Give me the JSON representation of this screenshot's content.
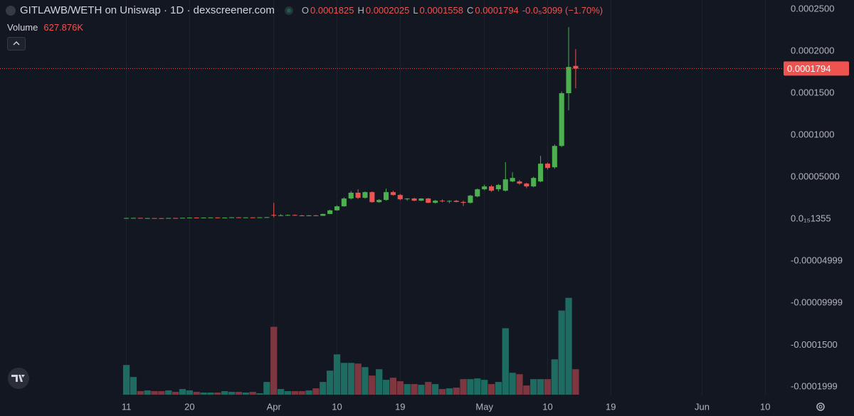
{
  "chart_data": {
    "type": "candlestick",
    "title": "GITLAWB/WETH on Uniswap · 1D · dexscreener.com",
    "ohlc_labels": [
      "O",
      "H",
      "L",
      "C"
    ],
    "change_label": "-0.0₅3099 (−1.70%)",
    "volume_title": "Volume",
    "volume_last_label": "627.876K",
    "x": [
      "03-11",
      "03-12",
      "03-13",
      "03-14",
      "03-15",
      "03-16",
      "03-17",
      "03-18",
      "03-19",
      "03-20",
      "03-21",
      "03-22",
      "03-23",
      "03-24",
      "03-25",
      "03-26",
      "03-27",
      "03-28",
      "03-29",
      "03-30",
      "03-31",
      "04-01",
      "04-02",
      "04-03",
      "04-04",
      "04-05",
      "04-06",
      "04-07",
      "04-08",
      "04-09",
      "04-10",
      "04-11",
      "04-12",
      "04-13",
      "04-14",
      "04-15",
      "04-16",
      "04-17",
      "04-18",
      "04-19",
      "04-20",
      "04-21",
      "04-22",
      "04-23",
      "04-24",
      "04-25",
      "04-26",
      "04-27",
      "04-28",
      "04-29",
      "04-30",
      "05-01",
      "05-02",
      "05-03",
      "05-04",
      "05-05",
      "05-06",
      "05-07",
      "05-08",
      "05-09",
      "05-10",
      "05-11",
      "05-12",
      "05-13",
      "05-14"
    ],
    "open": [
      9e-07,
      1.4e-06,
      1.5e-06,
      1.2e-06,
      1.3e-06,
      1.2e-06,
      1.1e-06,
      1.4e-06,
      1.3e-06,
      1.6e-06,
      1.9e-06,
      1.7e-06,
      1.9e-06,
      2e-06,
      1.8e-06,
      1.9e-06,
      2.2e-06,
      2e-06,
      2.1e-06,
      2e-06,
      2.2e-06,
      5.1e-06,
      4.2e-06,
      4.2e-06,
      5e-06,
      4.4e-06,
      4.1e-06,
      4.5e-06,
      4e-06,
      6.2e-06,
      1.05e-05,
      1.53e-05,
      2.46e-05,
      3.15e-05,
      2.54e-05,
      3.22e-05,
      2.03e-05,
      2.29e-05,
      3.22e-05,
      2.88e-05,
      2.37e-05,
      2.46e-05,
      2.2e-05,
      2.46e-05,
      1.95e-05,
      2.2e-05,
      2.12e-05,
      2.18e-05,
      2.05e-05,
      1.95e-05,
      2.71e-05,
      3.56e-05,
      3.9e-05,
      3.56e-05,
      3.39e-05,
      4.49e-05,
      4.49e-05,
      4.24e-05,
      3.9e-05,
      4.49e-05,
      6.61e-05,
      6.18e-05,
      8.72e-05,
      0.00015,
      0.0001825
    ],
    "high": [
      1.6e-06,
      1.7e-06,
      1.6e-06,
      1.4e-06,
      1.5e-06,
      1.4e-06,
      1.5e-06,
      1.6e-06,
      1.7e-06,
      2e-06,
      2.1e-06,
      2e-06,
      2.2e-06,
      2.3e-06,
      2.1e-06,
      2.4e-06,
      2.5e-06,
      2.3e-06,
      2.4e-06,
      2.3e-06,
      2.6e-06,
      1.95e-05,
      6e-06,
      5.5e-06,
      5.6e-06,
      5.2e-06,
      4.9e-06,
      5e-06,
      6.5e-06,
      1.12e-05,
      1.65e-05,
      2.6e-05,
      3.35e-05,
      3.56e-05,
      3.3e-05,
      3.3e-05,
      2.4e-05,
      3.64e-05,
      3.38e-05,
      3e-05,
      2.5e-05,
      2.54e-05,
      2.5e-05,
      2.54e-05,
      2.3e-05,
      2.35e-05,
      2.25e-05,
      2.3e-05,
      2.2e-05,
      2.9e-05,
      3.65e-05,
      4.1e-05,
      4.05e-05,
      4.2e-05,
      6.78e-05,
      5.59e-05,
      4.65e-05,
      4.35e-05,
      5.05e-05,
      7.54e-05,
      6.75e-05,
      8.9e-05,
      0.000152,
      0.0002287,
      0.0002025
    ],
    "low": [
      8e-07,
      1.2e-06,
      1.1e-06,
      1e-06,
      1.1e-06,
      1e-06,
      1e-06,
      1.2e-06,
      1.2e-06,
      1.5e-06,
      1.6e-06,
      1.6e-06,
      1.7e-06,
      1.7e-06,
      1.6e-06,
      1.8e-06,
      1.9e-06,
      1.8e-06,
      1.9e-06,
      1.8e-06,
      2e-06,
      2.2e-06,
      3.8e-06,
      3.9e-06,
      4e-06,
      3.8e-06,
      3.6e-06,
      3.8e-06,
      3.9e-06,
      6e-06,
      1e-05,
      1.48e-05,
      2.35e-05,
      2.4e-05,
      2.45e-05,
      1.96e-05,
      1.95e-05,
      2.2e-05,
      2.8e-05,
      2.25e-05,
      2.2e-05,
      2.15e-05,
      2.15e-05,
      1.9e-05,
      1.86e-05,
      2e-05,
      1.9e-05,
      2e-05,
      1.58e-05,
      1.85e-05,
      2.6e-05,
      3.45e-05,
      3.25e-05,
      3.3e-05,
      3.3e-05,
      4.4e-05,
      4.1e-05,
      3.7e-05,
      3.8e-05,
      4.4e-05,
      5.9e-05,
      6e-05,
      8.6e-05,
      0.0001296,
      0.0001558
    ],
    "close": [
      1.4e-06,
      1.5e-06,
      1.2e-06,
      1.3e-06,
      1.2e-06,
      1.1e-06,
      1.4e-06,
      1.3e-06,
      1.6e-06,
      1.9e-06,
      1.7e-06,
      1.9e-06,
      2e-06,
      1.8e-06,
      1.9e-06,
      2.2e-06,
      2e-06,
      2.1e-06,
      2e-06,
      2.2e-06,
      2.4e-06,
      4.2e-06,
      4.6e-06,
      5e-06,
      4.4e-06,
      4.1e-06,
      4.5e-06,
      4e-06,
      6.2e-06,
      1.05e-05,
      1.53e-05,
      2.46e-05,
      3.15e-05,
      2.54e-05,
      3.22e-05,
      2.03e-05,
      2.29e-05,
      3.22e-05,
      2.88e-05,
      2.37e-05,
      2.46e-05,
      2.2e-05,
      2.46e-05,
      1.95e-05,
      2.2e-05,
      2.12e-05,
      2.18e-05,
      2.05e-05,
      1.95e-05,
      2.8e-05,
      3.56e-05,
      3.9e-05,
      3.39e-05,
      4.07e-05,
      4.74e-05,
      4.91e-05,
      4.24e-05,
      3.9e-05,
      4.91e-05,
      6.61e-05,
      6.1e-05,
      8.72e-05,
      0.00015,
      0.0001813,
      0.0001794
    ],
    "volume": [
      732500,
      436000,
      87200,
      104600,
      87200,
      87200,
      104600,
      69800,
      139500,
      104600,
      69800,
      52300,
      52300,
      52300,
      87200,
      69800,
      69800,
      52300,
      69800,
      34900,
      313900,
      1674300,
      139500,
      87200,
      87200,
      87200,
      104600,
      157000,
      313900,
      593000,
      994100,
      784800,
      784800,
      767400,
      680200,
      470900,
      627900,
      366300,
      418600,
      331400,
      261600,
      261600,
      244200,
      313900,
      261600,
      139500,
      157000,
      174400,
      383700,
      383700,
      401100,
      366300,
      261600,
      313900,
      1639500,
      540700,
      505800,
      226700,
      383700,
      383700,
      383700,
      872100,
      2075500,
      2389400,
      627876
    ],
    "up_color": "#4caf50",
    "down_color": "#ef5350",
    "volume_up_color": "#1d6b61",
    "volume_down_color": "#7e3640",
    "xlim": [
      "02-22",
      "06-12"
    ],
    "xticks": [
      {
        "value": "03-11",
        "label": "11"
      },
      {
        "value": "03-20",
        "label": "20"
      },
      {
        "value": "04-01",
        "label": "Apr"
      },
      {
        "value": "04-10",
        "label": "10"
      },
      {
        "value": "04-19",
        "label": "19"
      },
      {
        "value": "05-01",
        "label": "May"
      },
      {
        "value": "05-10",
        "label": "10"
      },
      {
        "value": "05-19",
        "label": "19"
      },
      {
        "value": "06-01",
        "label": "Jun"
      },
      {
        "value": "06-10",
        "label": "10"
      }
    ],
    "ylim": [
      -0.000209,
      0.000261
    ],
    "yticks": [
      {
        "value": 0.00025,
        "label": "0.0002500"
      },
      {
        "value": 0.0002,
        "label": "0.0002000"
      },
      {
        "value": 0.00015,
        "label": "0.0001500"
      },
      {
        "value": 0.0001,
        "label": "0.0001000"
      },
      {
        "value": 5e-05,
        "label": "0.00005000"
      },
      {
        "value": 1.355e-17,
        "label": "0.0₁₅1355"
      },
      -4.999e-05,
      -9.999e-05,
      {
        "value": -0.00015,
        "label": "-0.0001500"
      },
      -0.0001999
    ],
    "volume_lim": [
      0,
      3000000
    ],
    "grid": true
  }
}
